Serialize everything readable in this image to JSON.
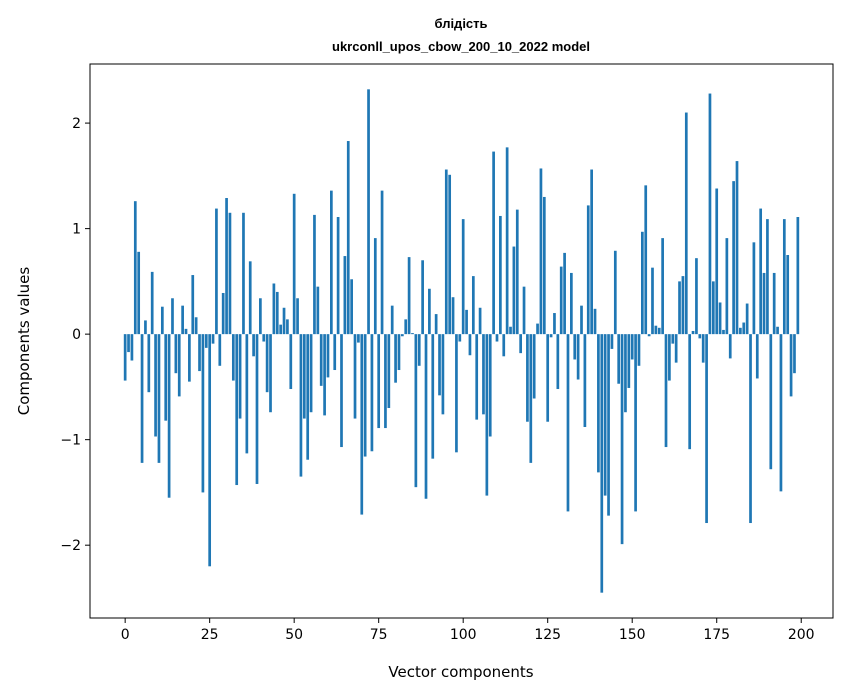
{
  "chart_data": {
    "type": "bar",
    "title_line1": "блідість",
    "title_line2": "ukrconll_upos_cbow_200_10_2022 model",
    "xlabel": "Vector components",
    "ylabel": "Components values",
    "xlim": [
      -10.4,
      209.4
    ],
    "ylim": [
      -2.69,
      2.56
    ],
    "xticks": [
      0,
      25,
      50,
      75,
      100,
      125,
      150,
      175,
      200
    ],
    "xtick_labels": [
      "0",
      "25",
      "50",
      "75",
      "100",
      "125",
      "150",
      "175",
      "200"
    ],
    "yticks": [
      -2,
      -1,
      0,
      1,
      2
    ],
    "ytick_labels": [
      "−2",
      "−1",
      "0",
      "1",
      "2"
    ],
    "grid": false,
    "color": "#1f77b4",
    "values": [
      -0.44,
      -0.17,
      -0.25,
      1.26,
      0.78,
      -1.22,
      0.13,
      -0.55,
      0.59,
      -0.97,
      -1.22,
      0.26,
      -0.82,
      -1.55,
      0.34,
      -0.37,
      -0.59,
      0.27,
      0.05,
      -0.45,
      0.56,
      0.16,
      -0.35,
      -1.5,
      -0.13,
      -2.2,
      -0.09,
      1.19,
      -0.3,
      0.39,
      1.29,
      1.15,
      -0.44,
      -1.43,
      -0.8,
      1.15,
      -1.13,
      0.69,
      -0.21,
      -1.42,
      0.34,
      -0.07,
      -0.55,
      -0.74,
      0.48,
      0.4,
      0.09,
      0.25,
      0.14,
      -0.52,
      1.33,
      0.34,
      -1.35,
      -0.8,
      -1.19,
      -0.74,
      1.13,
      0.45,
      -0.49,
      -0.77,
      -0.41,
      1.36,
      -0.34,
      1.11,
      -1.07,
      0.74,
      1.83,
      0.52,
      -0.8,
      -0.08,
      -1.71,
      -1.16,
      2.32,
      -1.11,
      0.91,
      -0.89,
      1.36,
      -0.89,
      -0.7,
      0.27,
      -0.46,
      -0.34,
      -0.02,
      0.14,
      0.73,
      0.01,
      -1.45,
      -0.3,
      0.7,
      -1.56,
      0.43,
      -1.18,
      0.19,
      -0.58,
      -0.76,
      1.56,
      1.51,
      0.35,
      -1.12,
      -0.07,
      1.09,
      0.23,
      -0.2,
      0.55,
      -0.81,
      0.25,
      -0.76,
      -1.53,
      -0.97,
      1.73,
      -0.07,
      1.12,
      -0.21,
      1.77,
      0.07,
      0.83,
      1.18,
      -0.18,
      0.45,
      -0.83,
      -1.22,
      -0.61,
      0.1,
      1.57,
      1.3,
      -0.83,
      -0.03,
      0.2,
      -0.52,
      0.64,
      0.77,
      -1.68,
      0.58,
      -0.24,
      -0.43,
      0.27,
      -0.88,
      1.22,
      1.56,
      0.24,
      -1.31,
      -2.45,
      -1.53,
      -1.72,
      -0.14,
      0.79,
      -0.47,
      -1.99,
      -0.74,
      -0.51,
      -0.24,
      -1.68,
      -0.3,
      0.97,
      1.41,
      -0.02,
      0.63,
      0.08,
      0.06,
      0.91,
      -1.07,
      -0.44,
      -0.09,
      -0.27,
      0.5,
      0.55,
      2.1,
      -1.09,
      0.03,
      0.72,
      -0.04,
      -0.27,
      -1.79,
      2.28,
      0.5,
      1.38,
      0.3,
      0.04,
      0.91,
      -0.23,
      1.45,
      1.64,
      0.06,
      0.11,
      0.29,
      -1.79,
      0.87,
      -0.42,
      1.19,
      0.58,
      1.09,
      -1.28,
      0.58,
      0.07,
      -1.49,
      1.09,
      0.75,
      -0.59,
      -0.37,
      1.11
    ]
  }
}
